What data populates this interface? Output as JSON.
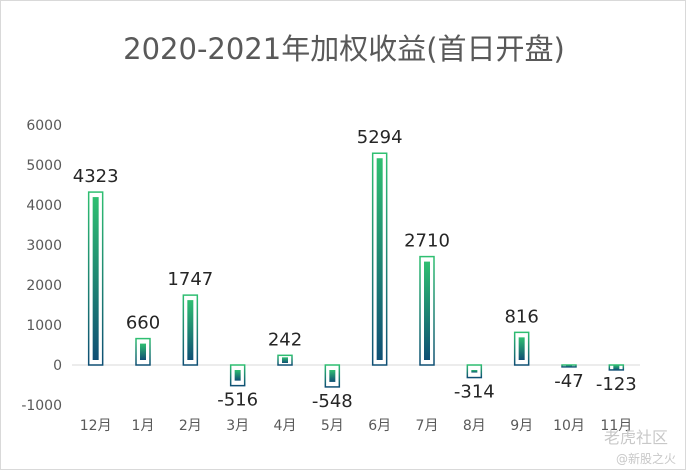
{
  "chart_data": {
    "type": "bar",
    "title": "2020-2021年加权收益(首日开盘)",
    "xlabel": "",
    "ylabel": "",
    "categories": [
      "12月",
      "1月",
      "2月",
      "3月",
      "4月",
      "5月",
      "6月",
      "7月",
      "8月",
      "9月",
      "10月",
      "11月"
    ],
    "values": [
      4323,
      660,
      1747,
      -516,
      242,
      -548,
      5294,
      2710,
      -314,
      816,
      -47,
      -123
    ],
    "data_labels": [
      "4323",
      "660",
      "1747",
      "-516",
      "242",
      "-548",
      "5294",
      "2710",
      "-314",
      "816",
      "-47",
      "-123"
    ],
    "yticks": [
      "-1000",
      "0",
      "1000",
      "2000",
      "3000",
      "4000",
      "5000",
      "6000"
    ],
    "ylim": [
      -1000,
      6000
    ],
    "grid": false,
    "legend": "none",
    "colors": {
      "bar_top": "#2fbf71",
      "bar_bottom": "#0f4f74",
      "outline": "#2a9d8f",
      "baseline": "#d9d9d9"
    }
  },
  "watermark": {
    "brand": "老虎社区",
    "sub": "@新股之火"
  }
}
